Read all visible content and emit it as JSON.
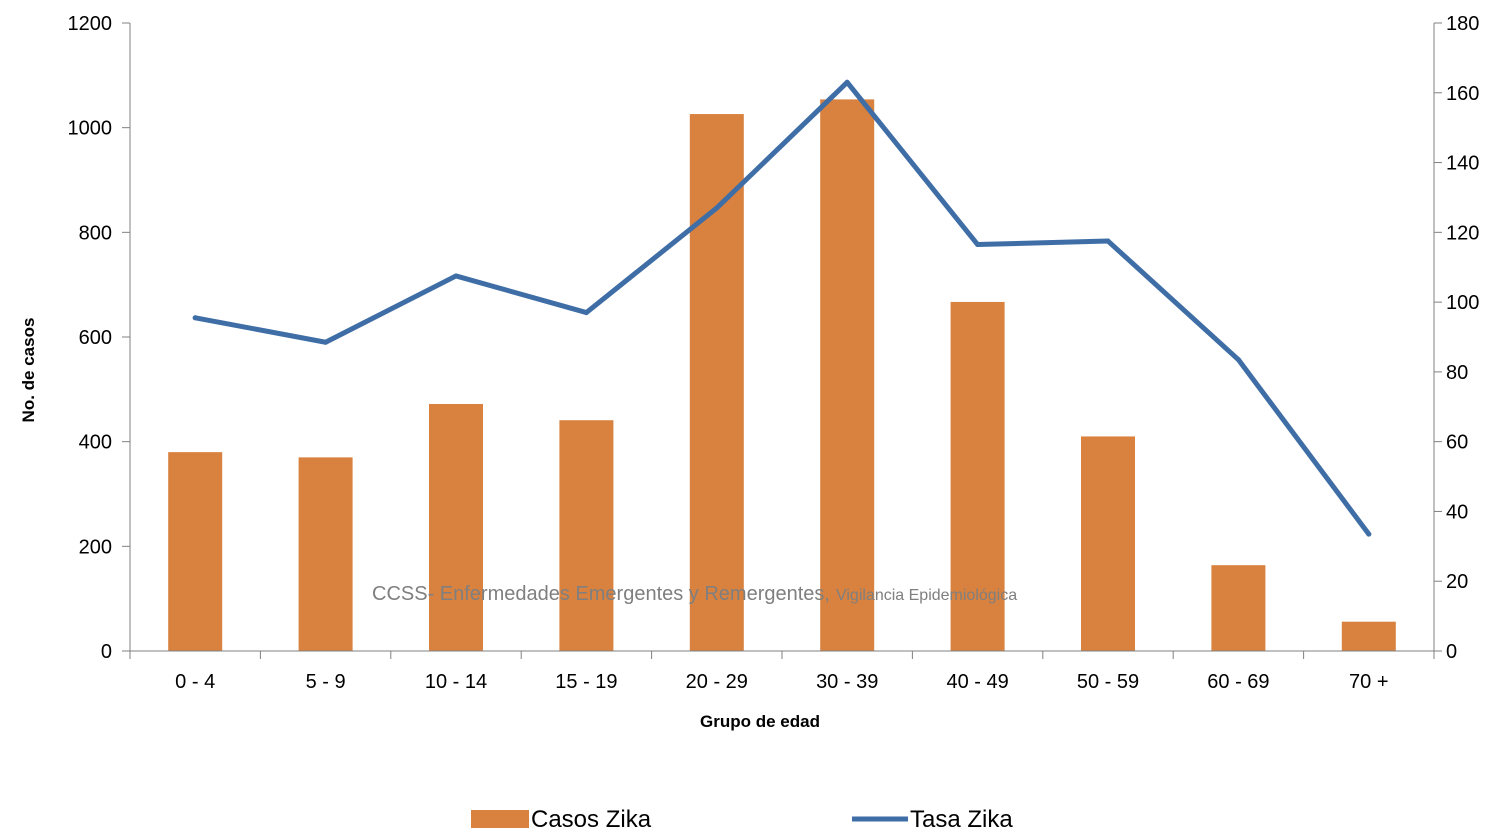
{
  "chart_data": {
    "type": "bar",
    "categories": [
      "0 - 4",
      "5 - 9",
      "10 - 14",
      "15 - 19",
      "20 - 29",
      "30 - 39",
      "40 - 49",
      "50 - 59",
      "60 - 69",
      "70 +"
    ],
    "series": [
      {
        "name": "Casos Zika",
        "type": "bar",
        "axis": "left",
        "color": "#d9823f",
        "values": [
          380,
          370,
          472,
          441,
          1026,
          1054,
          667,
          410,
          164,
          56
        ]
      },
      {
        "name": "Tasa Zika",
        "type": "line",
        "axis": "right",
        "color": "#3f6ea6",
        "values": [
          95.5,
          88.5,
          107.5,
          97,
          127,
          163,
          116.5,
          117.5,
          83.5,
          33.5
        ]
      }
    ],
    "xlabel": "Grupo de edad",
    "ylabel": "No. de casos",
    "y_left": {
      "min": 0,
      "max": 1200,
      "ticks": [
        "0",
        "200",
        "400",
        "600",
        "800",
        "1000",
        "1200"
      ]
    },
    "y_right": {
      "min": 0,
      "max": 180,
      "ticks": [
        "0",
        "20",
        "40",
        "60",
        "80",
        "100",
        "120",
        "140",
        "160",
        "180"
      ]
    },
    "grid": false,
    "legend_position": "bottom"
  },
  "watermark": {
    "part1": "CCSS- Enfermedades Emergentes y Remergentes,",
    "part2": "Vigilancia Epidemiológica"
  }
}
